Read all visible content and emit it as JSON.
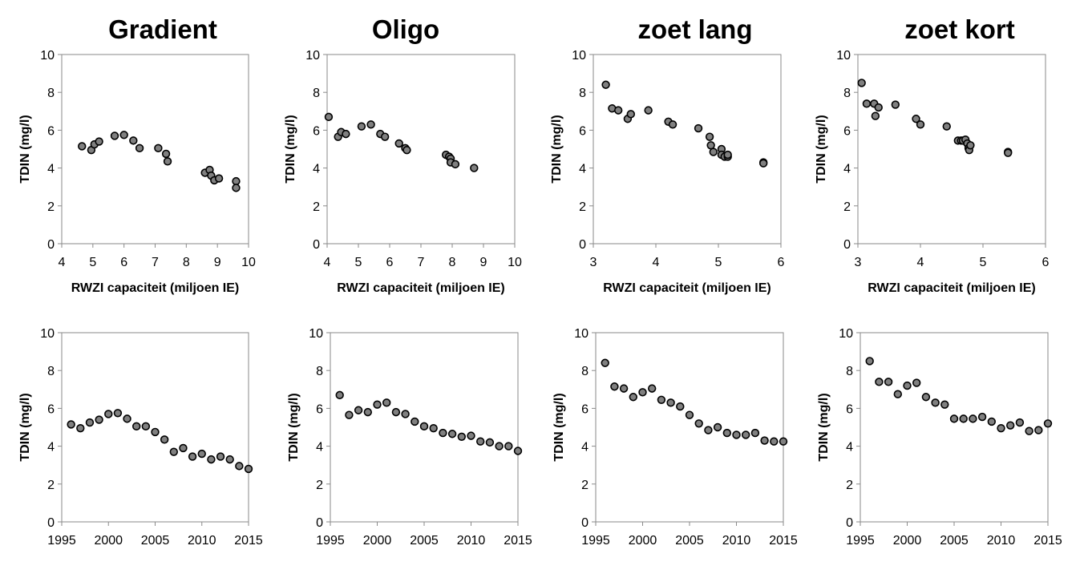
{
  "titles": [
    "Gradient",
    "Oligo",
    "zoet lang",
    "zoet kort"
  ],
  "chart_data": [
    {
      "type": "scatter",
      "title": "Gradient",
      "xlabel": "RWZI capaciteit (miljoen IE)",
      "ylabel": "TDIN (mg/l)",
      "xlim": [
        4,
        10
      ],
      "ylim": [
        0,
        10
      ],
      "xticks": [
        4,
        5,
        6,
        7,
        8,
        9,
        10
      ],
      "yticks": [
        0,
        2,
        4,
        6,
        8,
        10
      ],
      "points": [
        [
          4.65,
          5.15
        ],
        [
          4.95,
          4.95
        ],
        [
          5.05,
          5.25
        ],
        [
          5.2,
          5.4
        ],
        [
          5.7,
          5.7
        ],
        [
          6.0,
          5.75
        ],
        [
          6.3,
          5.45
        ],
        [
          6.5,
          5.05
        ],
        [
          7.1,
          5.05
        ],
        [
          7.35,
          4.75
        ],
        [
          7.4,
          4.35
        ],
        [
          8.6,
          3.75
        ],
        [
          8.75,
          3.9
        ],
        [
          8.8,
          3.6
        ],
        [
          8.9,
          3.35
        ],
        [
          9.05,
          3.45
        ],
        [
          9.6,
          3.3
        ],
        [
          9.6,
          2.95
        ]
      ]
    },
    {
      "type": "scatter",
      "title": "Oligo",
      "xlabel": "RWZI capaciteit (miljoen IE)",
      "ylabel": "TDIN (mg/l)",
      "xlim": [
        4,
        10
      ],
      "ylim": [
        0,
        10
      ],
      "xticks": [
        4,
        5,
        6,
        7,
        8,
        9,
        10
      ],
      "yticks": [
        0,
        2,
        4,
        6,
        8,
        10
      ],
      "points": [
        [
          4.05,
          6.7
        ],
        [
          4.35,
          5.65
        ],
        [
          4.45,
          5.9
        ],
        [
          4.6,
          5.8
        ],
        [
          5.1,
          6.2
        ],
        [
          5.4,
          6.3
        ],
        [
          5.7,
          5.8
        ],
        [
          5.85,
          5.65
        ],
        [
          6.3,
          5.3
        ],
        [
          6.5,
          5.05
        ],
        [
          6.55,
          4.95
        ],
        [
          7.8,
          4.7
        ],
        [
          7.9,
          4.6
        ],
        [
          7.95,
          4.5
        ],
        [
          7.95,
          4.3
        ],
        [
          8.1,
          4.2
        ],
        [
          8.7,
          4.0
        ]
      ]
    },
    {
      "type": "scatter",
      "title": "zoet lang",
      "xlabel": "RWZI capaciteit (miljoen IE)",
      "ylabel": "TDIN (mg/l)",
      "xlim": [
        3,
        6
      ],
      "ylim": [
        0,
        10
      ],
      "xticks": [
        3,
        4,
        5,
        6
      ],
      "yticks": [
        0,
        2,
        4,
        6,
        8,
        10
      ],
      "points": [
        [
          3.2,
          8.4
        ],
        [
          3.3,
          7.15
        ],
        [
          3.4,
          7.05
        ],
        [
          3.55,
          6.6
        ],
        [
          3.6,
          6.85
        ],
        [
          3.88,
          7.05
        ],
        [
          4.2,
          6.45
        ],
        [
          4.27,
          6.3
        ],
        [
          4.68,
          6.1
        ],
        [
          4.86,
          5.65
        ],
        [
          4.88,
          5.2
        ],
        [
          4.92,
          4.85
        ],
        [
          5.05,
          5.0
        ],
        [
          5.05,
          4.7
        ],
        [
          5.1,
          4.6
        ],
        [
          5.15,
          4.6
        ],
        [
          5.15,
          4.7
        ],
        [
          5.72,
          4.3
        ],
        [
          5.72,
          4.25
        ]
      ]
    },
    {
      "type": "scatter",
      "title": "zoet kort",
      "xlabel": "RWZI capaciteit (miljoen IE)",
      "ylabel": "TDIN (mg/l)",
      "xlim": [
        3,
        6
      ],
      "ylim": [
        0,
        10
      ],
      "xticks": [
        3,
        4,
        5,
        6
      ],
      "yticks": [
        0,
        2,
        4,
        6,
        8,
        10
      ],
      "points": [
        [
          3.06,
          8.5
        ],
        [
          3.14,
          7.4
        ],
        [
          3.26,
          7.4
        ],
        [
          3.28,
          6.75
        ],
        [
          3.33,
          7.2
        ],
        [
          3.6,
          7.35
        ],
        [
          3.93,
          6.6
        ],
        [
          4.0,
          6.3
        ],
        [
          4.42,
          6.2
        ],
        [
          4.6,
          5.45
        ],
        [
          4.65,
          5.45
        ],
        [
          4.68,
          5.45
        ],
        [
          4.72,
          5.5
        ],
        [
          4.75,
          5.3
        ],
        [
          4.77,
          5.05
        ],
        [
          4.78,
          4.95
        ],
        [
          4.8,
          5.2
        ],
        [
          5.4,
          4.85
        ],
        [
          5.4,
          4.8
        ]
      ]
    },
    {
      "type": "scatter",
      "xlabel": "",
      "ylabel": "TDIN (mg/l)",
      "xlim": [
        1995,
        2015
      ],
      "ylim": [
        0,
        10
      ],
      "xticks": [
        1995,
        2000,
        2005,
        2010,
        2015
      ],
      "yticks": [
        0,
        2,
        4,
        6,
        8,
        10
      ],
      "points": [
        [
          1996,
          5.15
        ],
        [
          1997,
          4.95
        ],
        [
          1998,
          5.25
        ],
        [
          1999,
          5.4
        ],
        [
          2000,
          5.7
        ],
        [
          2001,
          5.75
        ],
        [
          2002,
          5.45
        ],
        [
          2003,
          5.05
        ],
        [
          2004,
          5.05
        ],
        [
          2005,
          4.75
        ],
        [
          2006,
          4.35
        ],
        [
          2007,
          3.7
        ],
        [
          2008,
          3.9
        ],
        [
          2009,
          3.45
        ],
        [
          2010,
          3.6
        ],
        [
          2011,
          3.3
        ],
        [
          2012,
          3.45
        ],
        [
          2013,
          3.3
        ],
        [
          2014,
          2.95
        ],
        [
          2015,
          2.8
        ]
      ]
    },
    {
      "type": "scatter",
      "xlabel": "",
      "ylabel": "TDIN (mg/l)",
      "xlim": [
        1995,
        2015
      ],
      "ylim": [
        0,
        10
      ],
      "xticks": [
        1995,
        2000,
        2005,
        2010,
        2015
      ],
      "yticks": [
        0,
        2,
        4,
        6,
        8,
        10
      ],
      "points": [
        [
          1996,
          6.7
        ],
        [
          1997,
          5.65
        ],
        [
          1998,
          5.9
        ],
        [
          1999,
          5.8
        ],
        [
          2000,
          6.2
        ],
        [
          2001,
          6.3
        ],
        [
          2002,
          5.8
        ],
        [
          2003,
          5.7
        ],
        [
          2004,
          5.3
        ],
        [
          2005,
          5.05
        ],
        [
          2006,
          4.95
        ],
        [
          2007,
          4.7
        ],
        [
          2008,
          4.65
        ],
        [
          2009,
          4.5
        ],
        [
          2010,
          4.55
        ],
        [
          2011,
          4.25
        ],
        [
          2012,
          4.2
        ],
        [
          2013,
          4.0
        ],
        [
          2014,
          4.0
        ],
        [
          2015,
          3.75
        ]
      ]
    },
    {
      "type": "scatter",
      "xlabel": "",
      "ylabel": "TDIN (mg/l)",
      "xlim": [
        1995,
        2015
      ],
      "ylim": [
        0,
        10
      ],
      "xticks": [
        1995,
        2000,
        2005,
        2010,
        2015
      ],
      "yticks": [
        0,
        2,
        4,
        6,
        8,
        10
      ],
      "points": [
        [
          1996,
          8.4
        ],
        [
          1997,
          7.15
        ],
        [
          1998,
          7.05
        ],
        [
          1999,
          6.6
        ],
        [
          2000,
          6.85
        ],
        [
          2001,
          7.05
        ],
        [
          2002,
          6.45
        ],
        [
          2003,
          6.3
        ],
        [
          2004,
          6.1
        ],
        [
          2005,
          5.65
        ],
        [
          2006,
          5.2
        ],
        [
          2007,
          4.85
        ],
        [
          2008,
          5.0
        ],
        [
          2009,
          4.7
        ],
        [
          2010,
          4.6
        ],
        [
          2011,
          4.6
        ],
        [
          2012,
          4.7
        ],
        [
          2013,
          4.3
        ],
        [
          2014,
          4.25
        ],
        [
          2015,
          4.25
        ]
      ]
    },
    {
      "type": "scatter",
      "xlabel": "",
      "ylabel": "TDIN (mg/l)",
      "xlim": [
        1995,
        2015
      ],
      "ylim": [
        0,
        10
      ],
      "xticks": [
        1995,
        2000,
        2005,
        2010,
        2015
      ],
      "yticks": [
        0,
        2,
        4,
        6,
        8,
        10
      ],
      "points": [
        [
          1996,
          8.5
        ],
        [
          1997,
          7.4
        ],
        [
          1998,
          7.4
        ],
        [
          1999,
          6.75
        ],
        [
          2000,
          7.2
        ],
        [
          2001,
          7.35
        ],
        [
          2002,
          6.6
        ],
        [
          2003,
          6.3
        ],
        [
          2004,
          6.2
        ],
        [
          2005,
          5.45
        ],
        [
          2006,
          5.45
        ],
        [
          2007,
          5.45
        ],
        [
          2008,
          5.55
        ],
        [
          2009,
          5.3
        ],
        [
          2010,
          4.95
        ],
        [
          2011,
          5.1
        ],
        [
          2012,
          5.25
        ],
        [
          2013,
          4.8
        ],
        [
          2014,
          4.85
        ],
        [
          2015,
          5.2
        ]
      ]
    }
  ]
}
